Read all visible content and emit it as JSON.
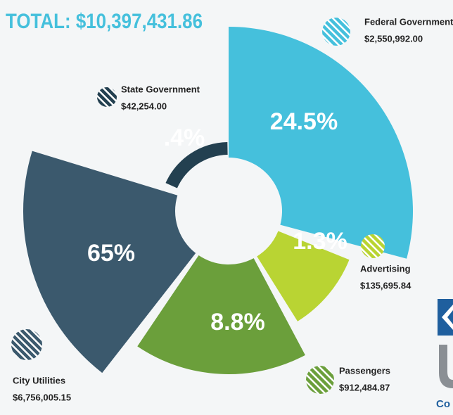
{
  "chart_data": {
    "type": "pie",
    "title": "TOTAL: $10,397,431.86",
    "categories": [
      "Federal Government",
      "Advertising",
      "Passengers",
      "City Utilities",
      "State Government"
    ],
    "values": [
      24.5,
      1.3,
      8.8,
      65,
      0.4
    ],
    "value_labels": [
      "24.5%",
      "1.3%",
      "8.8%",
      "65%",
      ".4%"
    ],
    "amounts": [
      "$2,550,992.00",
      "$135,695.84",
      "$912,484.87",
      "$6,756,005.15",
      "$42,254.00"
    ],
    "colors": [
      "#45c0dc",
      "#b9d433",
      "#6b9f3b",
      "#3b596d",
      "#234050"
    ]
  },
  "logo": {
    "text": "Co"
  }
}
